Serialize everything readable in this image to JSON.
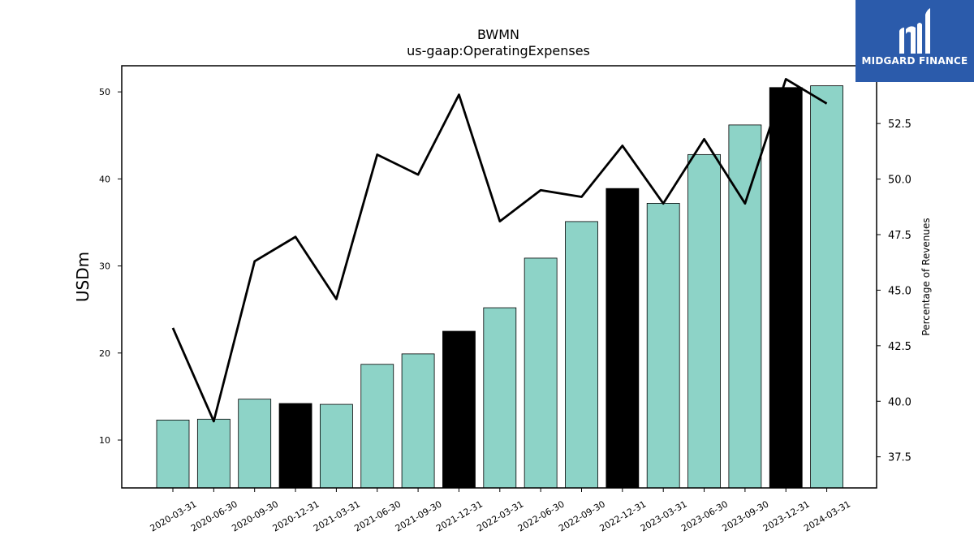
{
  "chart_data": {
    "type": "bar",
    "title": "BWMN",
    "subtitle": "us-gaap:OperatingExpenses",
    "ylabel": "USDm",
    "ylabel_right": "Percentage of Revenues",
    "categories": [
      "2020-03-31",
      "2020-06-30",
      "2020-09-30",
      "2020-12-31",
      "2021-03-31",
      "2021-06-30",
      "2021-09-30",
      "2021-12-31",
      "2022-03-31",
      "2022-06-30",
      "2022-09-30",
      "2022-12-31",
      "2023-03-31",
      "2023-06-30",
      "2023-09-30",
      "2023-12-31",
      "2024-03-31"
    ],
    "series": [
      {
        "type": "bar",
        "axis": "left",
        "values": [
          12.3,
          12.4,
          14.7,
          14.2,
          14.1,
          18.7,
          19.9,
          22.5,
          25.2,
          30.9,
          35.1,
          38.9,
          37.2,
          42.8,
          46.2,
          50.5,
          50.7
        ],
        "colors": [
          "#8dd3c7",
          "#8dd3c7",
          "#8dd3c7",
          "#000000",
          "#8dd3c7",
          "#8dd3c7",
          "#8dd3c7",
          "#000000",
          "#8dd3c7",
          "#8dd3c7",
          "#8dd3c7",
          "#000000",
          "#8dd3c7",
          "#8dd3c7",
          "#8dd3c7",
          "#000000",
          "#8dd3c7"
        ]
      },
      {
        "type": "line",
        "axis": "right",
        "color": "#000000",
        "values": [
          43.3,
          39.1,
          46.3,
          47.4,
          44.6,
          51.1,
          50.2,
          53.8,
          48.1,
          49.5,
          49.2,
          51.5,
          48.9,
          51.8,
          48.9,
          54.5,
          53.4
        ]
      }
    ],
    "ylim": [
      4.5,
      53.0
    ],
    "yticks": [
      "10",
      "20",
      "30",
      "40",
      "50"
    ],
    "ylim_right": [
      36.1,
      55.1
    ],
    "yticks_right": [
      "37.5",
      "40.0",
      "42.5",
      "45.0",
      "47.5",
      "50.0",
      "52.5"
    ],
    "grid": false
  },
  "logo": {
    "text": "MIDGARD FINANCE",
    "color": "#2b5bab"
  }
}
